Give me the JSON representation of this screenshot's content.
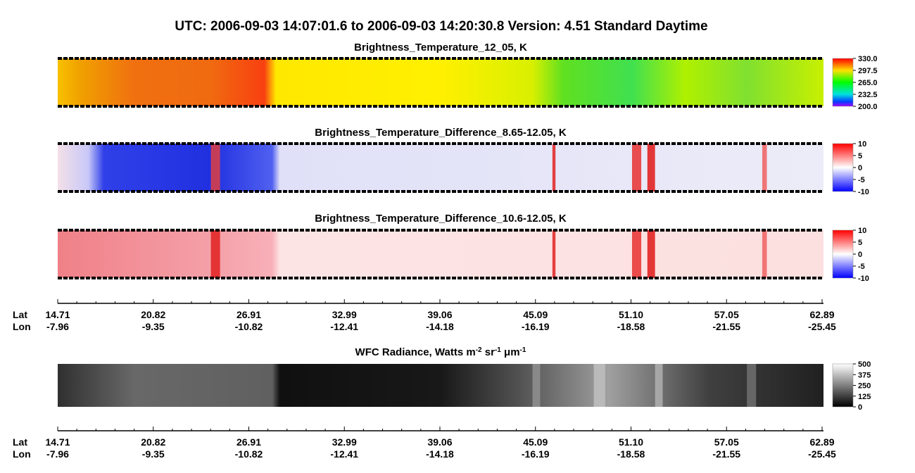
{
  "title": "UTC:  2006-09-03   14:07:01.6  to  2006-09-03   14:20:30.8    Version: 4.51  Standard Daytime",
  "panels": [
    {
      "title": "Brightness_Temperature_12_05, K",
      "colorbar_labels": [
        "330.0",
        "297.5",
        "265.0",
        "232.5",
        "200.0"
      ]
    },
    {
      "title": "Brightness_Temperature_Difference_8.65-12.05, K",
      "colorbar_labels": [
        "10",
        "5",
        "0",
        "-5",
        "-10"
      ]
    },
    {
      "title": "Brightness_Temperature_Difference_10.6-12.05, K",
      "colorbar_labels": [
        "10",
        "5",
        "0",
        "-5",
        "-10"
      ]
    },
    {
      "title_parts": [
        "WFC Radiance, Watts m",
        "-2",
        " sr",
        "-1",
        " μm",
        "-1"
      ],
      "colorbar_labels": [
        "500",
        "375",
        "250",
        "125",
        "0"
      ]
    }
  ],
  "axes": [
    {
      "row_labels": [
        "Lat",
        "Lon"
      ],
      "lat": [
        "14.71",
        "20.82",
        "26.91",
        "32.99",
        "39.06",
        "45.09",
        "51.10",
        "57.05",
        "62.89"
      ],
      "lon": [
        "-7.96",
        "-9.35",
        "-10.82",
        "-12.41",
        "-14.18",
        "-16.19",
        "-18.58",
        "-21.55",
        "-25.45"
      ]
    },
    {
      "row_labels": [
        "Lat",
        "Lon"
      ],
      "lat": [
        "14.71",
        "20.82",
        "26.91",
        "32.99",
        "39.06",
        "45.09",
        "51.10",
        "57.05",
        "62.89"
      ],
      "lon": [
        "-7.96",
        "-9.35",
        "-10.82",
        "-12.41",
        "-14.18",
        "-16.19",
        "-18.58",
        "-21.55",
        "-25.45"
      ]
    }
  ]
}
